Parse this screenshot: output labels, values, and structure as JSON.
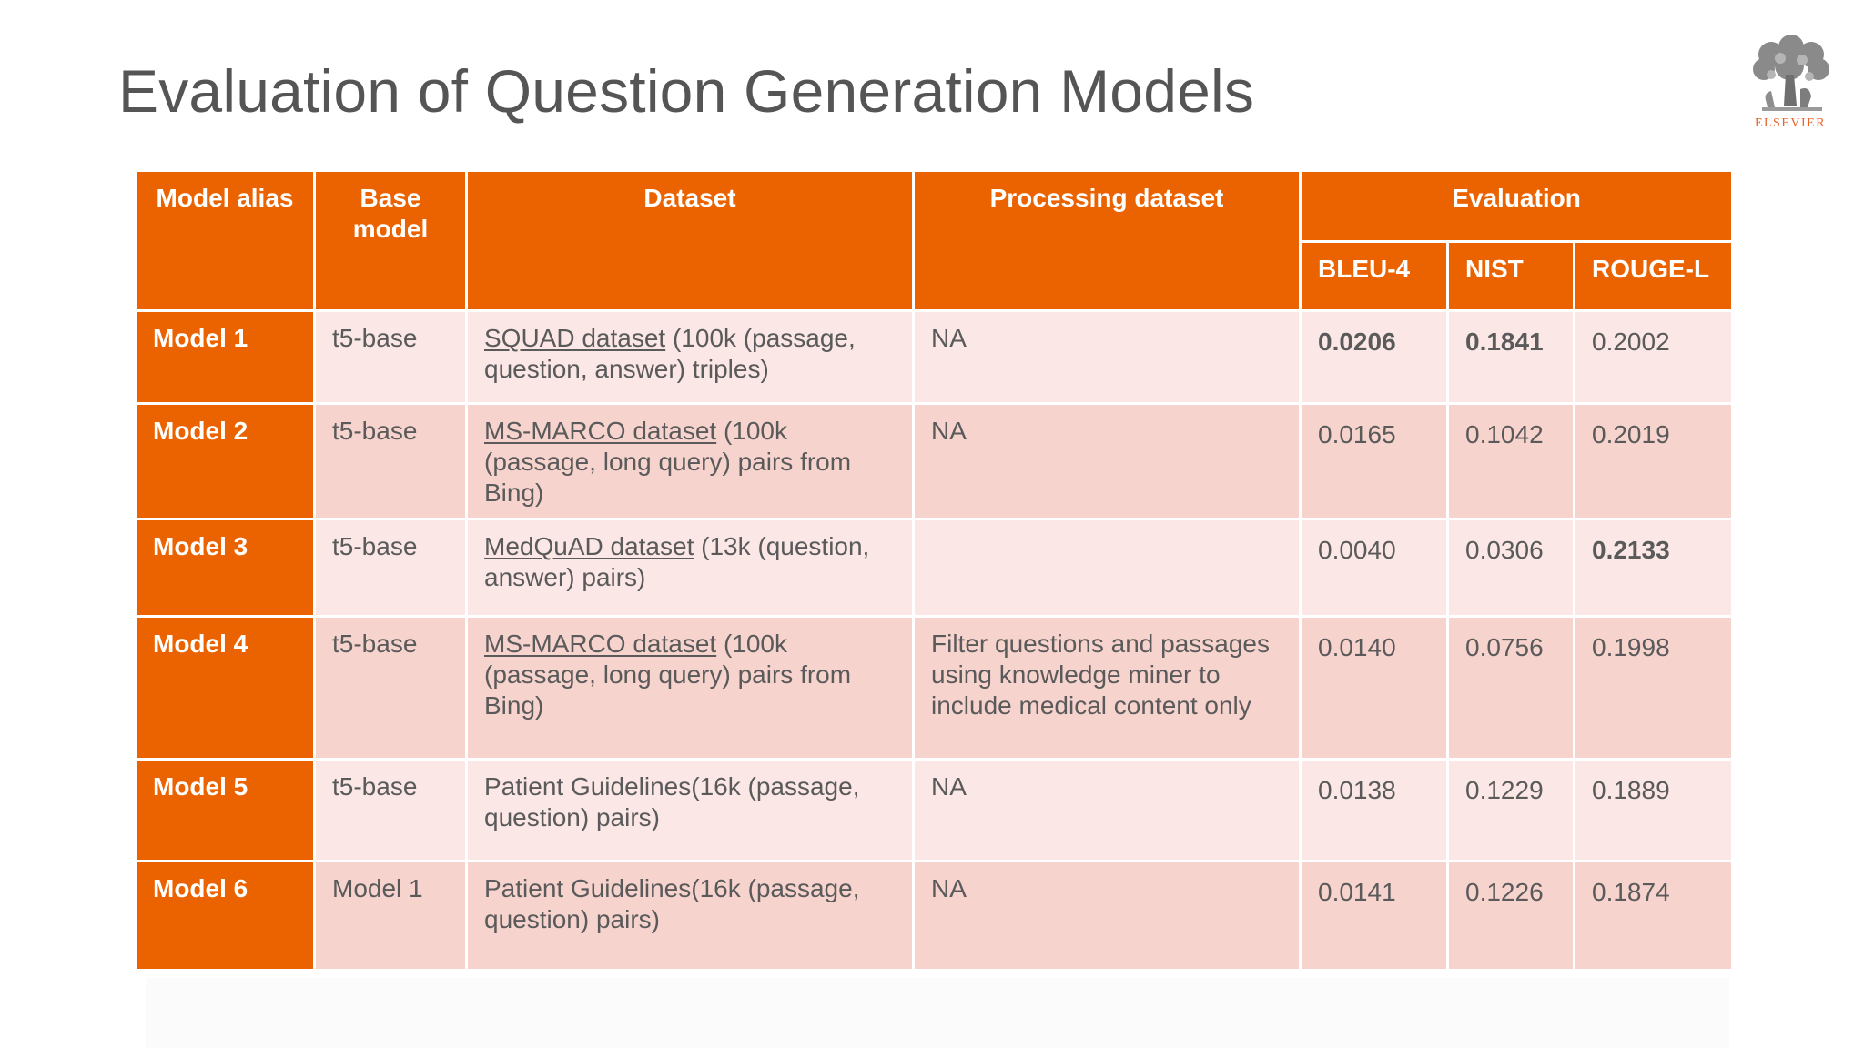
{
  "title": "Evaluation of Question Generation Models",
  "logo": {
    "text": "ELSEVIER",
    "icon": "elsevier-tree-icon"
  },
  "colors": {
    "header": "#eb6300",
    "row_light": "#fbe7e6",
    "row_dark": "#f7d3ce",
    "title": "#555555"
  },
  "table": {
    "headers": {
      "model_alias": "Model alias",
      "base_model": "Base model",
      "dataset": "Dataset",
      "processing": "Processing dataset",
      "evaluation": "Evaluation",
      "bleu": "BLEU-4",
      "nist": "NIST",
      "rouge": "ROUGE-L"
    },
    "rows": [
      {
        "alias": "Model 1",
        "base": "t5-base",
        "dataset_link": "SQUAD dataset",
        "dataset_rest": " (100k (passage, question, answer) triples)",
        "processing": "NA",
        "bleu": "0.0206",
        "nist": "0.1841",
        "rouge": "0.2002"
      },
      {
        "alias": "Model 2",
        "base": "t5-base",
        "dataset_link": "MS-MARCO dataset",
        "dataset_rest": " (100k (passage, long query) pairs from Bing)",
        "processing": "NA",
        "bleu": "0.0165",
        "nist": "0.1042",
        "rouge": "0.2019"
      },
      {
        "alias": "Model 3",
        "base": "t5-base",
        "dataset_link": "MedQuAD dataset",
        "dataset_rest": " (13k (question, answer) pairs)",
        "processing": "",
        "bleu": "0.0040",
        "nist": "0.0306",
        "rouge": "0.2133"
      },
      {
        "alias": "Model 4",
        "base": "t5-base",
        "dataset_link": "MS-MARCO dataset",
        "dataset_rest": " (100k (passage, long query) pairs from Bing)",
        "processing": "Filter questions and passages using knowledge miner to include medical content only",
        "bleu": "0.0140",
        "nist": "0.0756",
        "rouge": "0.1998"
      },
      {
        "alias": "Model 5",
        "base": "t5-base",
        "dataset_link": "",
        "dataset_rest": "Patient Guidelines(16k (passage, question) pairs)",
        "processing": "NA",
        "bleu": "0.0138",
        "nist": "0.1229",
        "rouge": "0.1889"
      },
      {
        "alias": "Model 6",
        "base": "Model 1",
        "dataset_link": "",
        "dataset_rest": "Patient Guidelines(16k (passage, question) pairs)",
        "processing": "NA",
        "bleu": "0.0141",
        "nist": "0.1226",
        "rouge": "0.1874"
      }
    ]
  }
}
